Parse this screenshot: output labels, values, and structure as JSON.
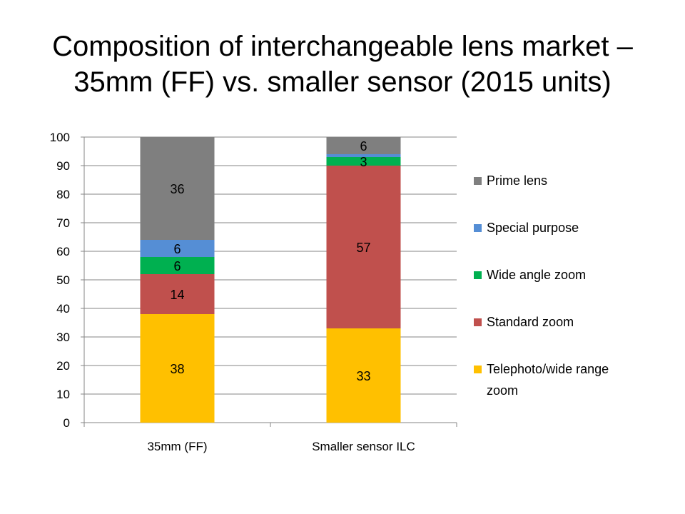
{
  "chart_data": {
    "type": "bar",
    "stacked": true,
    "title_lines": [
      "Composition of interchangeable lens market –",
      "35mm (FF) vs. smaller sensor (2015 units)"
    ],
    "categories": [
      "35mm (FF)",
      "Smaller sensor ILC"
    ],
    "series": [
      {
        "name": "Telephoto/wide range zoom",
        "legend_lines": [
          "Telephoto/wide range",
          "zoom"
        ],
        "color": "#FFC000",
        "values": [
          38,
          33
        ],
        "labels": [
          "38",
          "33"
        ]
      },
      {
        "name": "Standard zoom",
        "legend_lines": [
          "Standard zoom"
        ],
        "color": "#C0504D",
        "values": [
          14,
          57
        ],
        "labels": [
          "14",
          "57"
        ]
      },
      {
        "name": "Wide angle zoom",
        "legend_lines": [
          "Wide angle zoom"
        ],
        "color": "#00B050",
        "values": [
          6,
          3
        ],
        "labels": [
          "6",
          "3"
        ]
      },
      {
        "name": "Special purpose",
        "legend_lines": [
          "Special purpose"
        ],
        "color": "#558ED5",
        "values": [
          6,
          1
        ],
        "labels": [
          "6",
          ""
        ]
      },
      {
        "name": "Prime lens",
        "legend_lines": [
          "Prime lens"
        ],
        "color": "#7F7F7F",
        "values": [
          36,
          6
        ],
        "labels": [
          "36",
          "6"
        ]
      }
    ],
    "ylim": [
      0,
      100
    ],
    "yticks": [
      "0",
      "10",
      "20",
      "30",
      "40",
      "50",
      "60",
      "70",
      "80",
      "90",
      "100"
    ],
    "grid": true,
    "legend_position": "right"
  }
}
